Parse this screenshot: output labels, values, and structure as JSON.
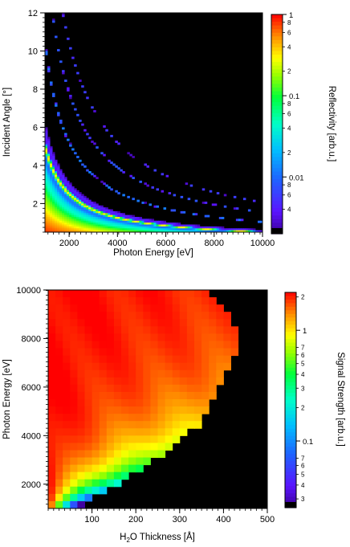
{
  "chart_data": [
    {
      "type": "heatmap",
      "xlabel": "Photon Energy [eV]",
      "ylabel": "Incident Angle [°]",
      "xlim": [
        1000,
        10000
      ],
      "ylim": [
        0.5,
        12
      ],
      "xticks": [
        2000,
        4000,
        6000,
        8000,
        10000
      ],
      "yticks": [
        2,
        4,
        6,
        8,
        10,
        12
      ],
      "colorbar": {
        "label": "Reflectivity [arb.u.]",
        "scale": "log",
        "range": [
          0.002,
          1
        ],
        "major": [
          {
            "v": 1,
            "t": "1"
          },
          {
            "v": 0.1,
            "t": "0.1"
          },
          {
            "v": 0.01,
            "t": "0.01"
          }
        ],
        "minor": [
          {
            "v": 0.8,
            "t": "8"
          },
          {
            "v": 0.6,
            "t": "6"
          },
          {
            "v": 0.4,
            "t": "4"
          },
          {
            "v": 0.2,
            "t": "2"
          },
          {
            "v": 0.08,
            "t": "8"
          },
          {
            "v": 0.06,
            "t": "6"
          },
          {
            "v": 0.04,
            "t": "4"
          },
          {
            "v": 0.02,
            "t": "2"
          },
          {
            "v": 0.008,
            "t": "8"
          },
          {
            "v": 0.006,
            "t": "6"
          },
          {
            "v": 0.004,
            "t": "4"
          }
        ],
        "below_range_color": "#000000"
      },
      "features": {
        "bragg_peak_orders_angle_times_energy_deg_eV": [
          5000,
          10400,
          15600,
          20800
        ],
        "main_peak_reflectivity": 0.3,
        "low_angle_total_reflection_reflectivity": 1
      }
    },
    {
      "type": "heatmap",
      "xlabel": "H2O Thickness [Å]",
      "xlabel_parts": {
        "pre": "H",
        "sub": "2",
        "post": "O Thickness [Å]"
      },
      "ylabel": "Photon Energy [eV]",
      "xlim": [
        0,
        500
      ],
      "ylim": [
        1000,
        10000
      ],
      "xticks": [
        100,
        200,
        300,
        400,
        500
      ],
      "yticks": [
        2000,
        4000,
        6000,
        8000,
        10000
      ],
      "colorbar": {
        "label": "Signal Strength [arb.u.]",
        "scale": "log",
        "range": [
          0.025,
          2.2
        ],
        "major": [
          {
            "v": 1,
            "t": "1"
          },
          {
            "v": 0.1,
            "t": "0.1"
          }
        ],
        "minor": [
          {
            "v": 2,
            "t": "2"
          },
          {
            "v": 0.7,
            "t": "7"
          },
          {
            "v": 0.6,
            "t": "6"
          },
          {
            "v": 0.5,
            "t": "5"
          },
          {
            "v": 0.4,
            "t": "4"
          },
          {
            "v": 0.3,
            "t": "3"
          },
          {
            "v": 0.2,
            "t": "2"
          },
          {
            "v": 0.07,
            "t": "7"
          },
          {
            "v": 0.06,
            "t": "6"
          },
          {
            "v": 0.05,
            "t": "5"
          },
          {
            "v": 0.04,
            "t": "4"
          },
          {
            "v": 0.03,
            "t": "3"
          }
        ],
        "below_range_color": "#000000"
      },
      "features": {
        "max_thickness_vs_energy_A": [
          [
            1000,
            60
          ],
          [
            1500,
            110
          ],
          [
            2000,
            160
          ],
          [
            2500,
            195
          ],
          [
            3000,
            245
          ],
          [
            3500,
            275
          ],
          [
            4000,
            310
          ],
          [
            4500,
            350
          ],
          [
            5000,
            365
          ],
          [
            6000,
            385
          ],
          [
            7000,
            420
          ],
          [
            8000,
            435
          ],
          [
            9000,
            415
          ],
          [
            10000,
            360
          ]
        ]
      }
    }
  ]
}
